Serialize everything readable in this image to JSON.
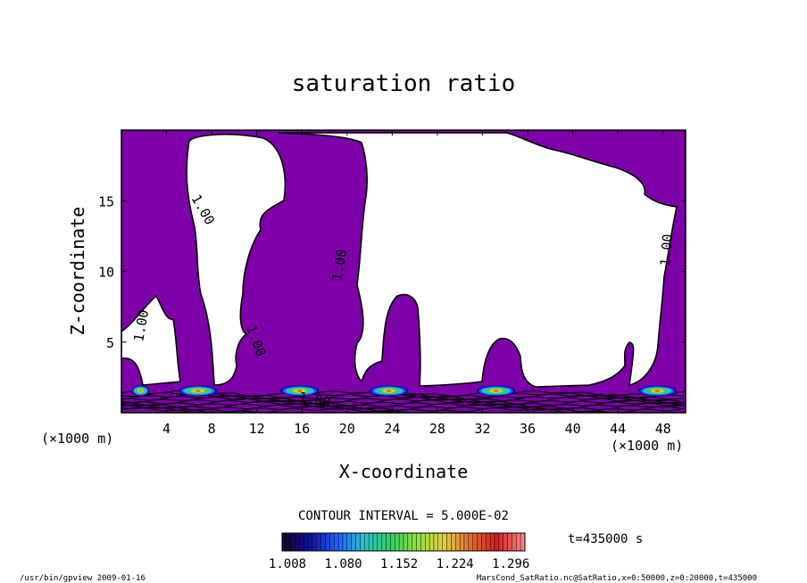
{
  "chart_data": {
    "type": "heatmap",
    "title": "saturation ratio",
    "xlabel": "X-coordinate",
    "ylabel": "Z-coordinate",
    "x_unit": "(×1000 m)",
    "y_unit": "(×1000 m)",
    "xlim": [
      0,
      50
    ],
    "ylim": [
      0,
      20
    ],
    "x_ticks": [
      "4",
      "8",
      "12",
      "16",
      "20",
      "24",
      "28",
      "32",
      "36",
      "40",
      "44",
      "48"
    ],
    "y_ticks": [
      "5",
      "10",
      "15"
    ],
    "contour_interval": "CONTOUR INTERVAL = 5.000E-02",
    "contour_labels": [
      "1.00",
      "1.00",
      "1.00",
      "1.00",
      "1.00",
      "1.00"
    ],
    "time_label": "t=435000 s",
    "colorbar_ticks": [
      "1.008",
      "1.080",
      "1.152",
      "1.224",
      "1.296"
    ],
    "colorbar_range": [
      1.008,
      1.296
    ],
    "colors": {
      "saturated_fill": "#7d00a8",
      "unsaturated_fill": "#ffffff",
      "colormap": [
        "#1a0030",
        "#1010a0",
        "#2060ff",
        "#30c0d0",
        "#30d060",
        "#90e040",
        "#e0d040",
        "#e07030",
        "#d02020",
        "#ff8080"
      ]
    },
    "cloud_cores_x": [
      1.7,
      6.8,
      15.8,
      23.7,
      33.2,
      47.5
    ]
  },
  "footer": {
    "program": "/usr/bin/gpview   2009-01-16",
    "source": "MarsCond_SatRatio.nc@SatRatio,x=0:50000,z=0:20000,t=435000"
  }
}
